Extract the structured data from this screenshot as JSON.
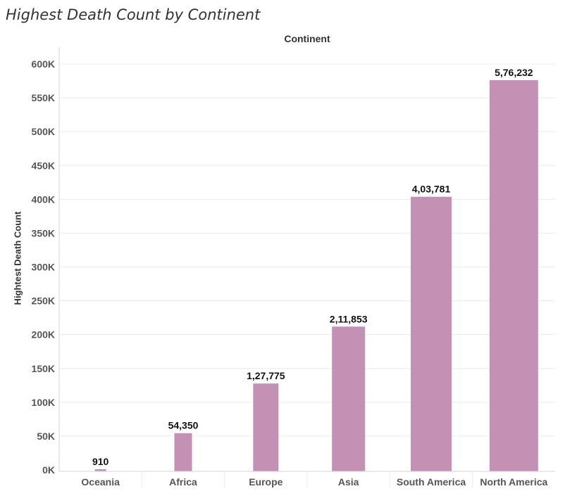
{
  "title": "Highest Death Count by Continent",
  "column_header": "Continent",
  "colors": {
    "bar": "#c490b4",
    "grid": "#ececec",
    "axis": "#d6d6d6"
  },
  "chart_data": {
    "type": "bar",
    "title": "Highest Death Count by Continent",
    "xlabel": "Continent",
    "ylabel": "Hightest Death Count",
    "categories": [
      "Oceania",
      "Africa",
      "Europe",
      "Asia",
      "South America",
      "North America"
    ],
    "values": [
      910,
      54350,
      127775,
      211853,
      403781,
      576232
    ],
    "data_labels": [
      "910",
      "54,350",
      "1,27,775",
      "2,11,853",
      "4,03,781",
      "5,76,232"
    ],
    "ylim": [
      0,
      600000
    ],
    "yticks": [
      0,
      50000,
      100000,
      150000,
      200000,
      250000,
      300000,
      350000,
      400000,
      450000,
      500000,
      550000,
      600000
    ],
    "ytick_labels": [
      "0K",
      "50K",
      "100K",
      "150K",
      "200K",
      "250K",
      "300K",
      "350K",
      "400K",
      "450K",
      "500K",
      "550K",
      "600K"
    ],
    "grid": true,
    "legend": "none"
  }
}
